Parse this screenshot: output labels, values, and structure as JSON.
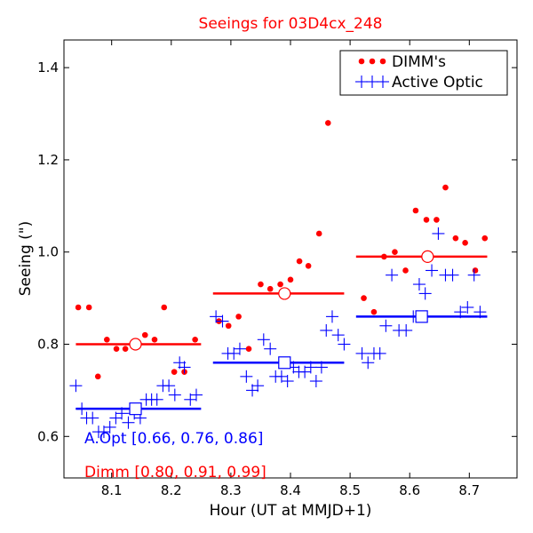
{
  "chart_data": {
    "type": "scatter",
    "title": "Seeings for 03D4cx_248",
    "xlabel": "Hour (UT at MMJD+1)",
    "ylabel": "Seeing (\")",
    "xlim": [
      8.02,
      8.78
    ],
    "ylim": [
      0.51,
      1.46
    ],
    "x_ticks": [
      8.1,
      8.2,
      8.3,
      8.4,
      8.5,
      8.6,
      8.7
    ],
    "x_tick_labels": [
      "8.1",
      "8.2",
      "8.3",
      "8.4",
      "8.5",
      "8.6",
      "8.7"
    ],
    "y_ticks": [
      0.6,
      0.8,
      1.0,
      1.2,
      1.4
    ],
    "y_tick_labels": [
      "0.6",
      "0.8",
      "1.0",
      "1.2",
      "1.4"
    ],
    "legend": {
      "position": "top-right",
      "entries": [
        {
          "label": "DIMM's",
          "color": "#ff0000",
          "marker": "dots"
        },
        {
          "label": "Active Optic",
          "color": "#0000ff",
          "marker": "plus"
        }
      ]
    },
    "series": [
      {
        "name": "DIMM's",
        "color": "#ff0000",
        "marker": "dot",
        "points": [
          [
            8.044,
            0.88
          ],
          [
            8.062,
            0.88
          ],
          [
            8.077,
            0.73
          ],
          [
            8.092,
            0.81
          ],
          [
            8.108,
            0.79
          ],
          [
            8.123,
            0.79
          ],
          [
            8.14,
            0.8
          ],
          [
            8.156,
            0.82
          ],
          [
            8.172,
            0.81
          ],
          [
            8.188,
            0.88
          ],
          [
            8.205,
            0.74
          ],
          [
            8.222,
            0.74
          ],
          [
            8.24,
            0.81
          ],
          [
            8.28,
            0.85
          ],
          [
            8.296,
            0.84
          ],
          [
            8.313,
            0.86
          ],
          [
            8.33,
            0.79
          ],
          [
            8.35,
            0.93
          ],
          [
            8.366,
            0.92
          ],
          [
            8.383,
            0.93
          ],
          [
            8.4,
            0.94
          ],
          [
            8.415,
            0.98
          ],
          [
            8.43,
            0.97
          ],
          [
            8.448,
            1.04
          ],
          [
            8.463,
            1.28
          ],
          [
            8.523,
            0.9
          ],
          [
            8.54,
            0.87
          ],
          [
            8.557,
            0.99
          ],
          [
            8.575,
            1.0
          ],
          [
            8.593,
            0.96
          ],
          [
            8.61,
            1.09
          ],
          [
            8.628,
            1.07
          ],
          [
            8.645,
            1.07
          ],
          [
            8.66,
            1.14
          ],
          [
            8.677,
            1.03
          ],
          [
            8.693,
            1.02
          ],
          [
            8.71,
            0.96
          ],
          [
            8.726,
            1.03
          ]
        ]
      },
      {
        "name": "Active Optic",
        "color": "#0000ff",
        "marker": "plus",
        "points": [
          [
            8.04,
            0.71
          ],
          [
            8.05,
            0.66
          ],
          [
            8.058,
            0.64
          ],
          [
            8.068,
            0.64
          ],
          [
            8.078,
            0.61
          ],
          [
            8.087,
            0.61
          ],
          [
            8.097,
            0.62
          ],
          [
            8.107,
            0.64
          ],
          [
            8.117,
            0.65
          ],
          [
            8.128,
            0.63
          ],
          [
            8.138,
            0.65
          ],
          [
            8.148,
            0.64
          ],
          [
            8.158,
            0.68
          ],
          [
            8.167,
            0.68
          ],
          [
            8.176,
            0.68
          ],
          [
            8.186,
            0.71
          ],
          [
            8.196,
            0.71
          ],
          [
            8.206,
            0.69
          ],
          [
            8.214,
            0.76
          ],
          [
            8.222,
            0.75
          ],
          [
            8.232,
            0.68
          ],
          [
            8.242,
            0.69
          ],
          [
            8.275,
            0.86
          ],
          [
            8.286,
            0.85
          ],
          [
            8.295,
            0.78
          ],
          [
            8.305,
            0.78
          ],
          [
            8.315,
            0.79
          ],
          [
            8.326,
            0.73
          ],
          [
            8.336,
            0.7
          ],
          [
            8.345,
            0.71
          ],
          [
            8.355,
            0.81
          ],
          [
            8.366,
            0.79
          ],
          [
            8.375,
            0.73
          ],
          [
            8.385,
            0.73
          ],
          [
            8.395,
            0.72
          ],
          [
            8.405,
            0.75
          ],
          [
            8.414,
            0.74
          ],
          [
            8.424,
            0.74
          ],
          [
            8.434,
            0.75
          ],
          [
            8.443,
            0.72
          ],
          [
            8.452,
            0.75
          ],
          [
            8.46,
            0.83
          ],
          [
            8.47,
            0.86
          ],
          [
            8.48,
            0.82
          ],
          [
            8.49,
            0.8
          ],
          [
            8.52,
            0.78
          ],
          [
            8.53,
            0.76
          ],
          [
            8.54,
            0.78
          ],
          [
            8.55,
            0.78
          ],
          [
            8.56,
            0.84
          ],
          [
            8.57,
            0.95
          ],
          [
            8.582,
            0.83
          ],
          [
            8.594,
            0.83
          ],
          [
            8.606,
            0.86
          ],
          [
            8.616,
            0.93
          ],
          [
            8.626,
            0.91
          ],
          [
            8.637,
            0.96
          ],
          [
            8.648,
            1.04
          ],
          [
            8.66,
            0.95
          ],
          [
            8.672,
            0.95
          ],
          [
            8.685,
            0.87
          ],
          [
            8.697,
            0.88
          ],
          [
            8.708,
            0.95
          ],
          [
            8.718,
            0.87
          ]
        ]
      }
    ],
    "segments": [
      {
        "name": "Dimm",
        "color": "#ff0000",
        "x_start": 8.04,
        "x_end": 8.25,
        "y": 0.8,
        "marker_x": 8.14,
        "marker": "circle"
      },
      {
        "name": "Dimm",
        "color": "#ff0000",
        "x_start": 8.27,
        "x_end": 8.49,
        "y": 0.91,
        "marker_x": 8.39,
        "marker": "circle"
      },
      {
        "name": "Dimm",
        "color": "#ff0000",
        "x_start": 8.51,
        "x_end": 8.73,
        "y": 0.99,
        "marker_x": 8.63,
        "marker": "circle"
      },
      {
        "name": "A.Opt",
        "color": "#0000ff",
        "x_start": 8.04,
        "x_end": 8.25,
        "y": 0.66,
        "marker_x": 8.14,
        "marker": "square"
      },
      {
        "name": "A.Opt",
        "color": "#0000ff",
        "x_start": 8.27,
        "x_end": 8.49,
        "y": 0.76,
        "marker_x": 8.39,
        "marker": "square"
      },
      {
        "name": "A.Opt",
        "color": "#0000ff",
        "x_start": 8.51,
        "x_end": 8.73,
        "y": 0.86,
        "marker_x": 8.62,
        "marker": "square"
      }
    ],
    "annotations": [
      {
        "name": "aopt-annotation",
        "text": "A.Opt [0.66, 0.76, 0.86]",
        "color": "#0000ff"
      },
      {
        "name": "dimm-annotation",
        "text": "Dimm [0.80, 0.91, 0.99]",
        "color": "#ff0000"
      }
    ]
  }
}
